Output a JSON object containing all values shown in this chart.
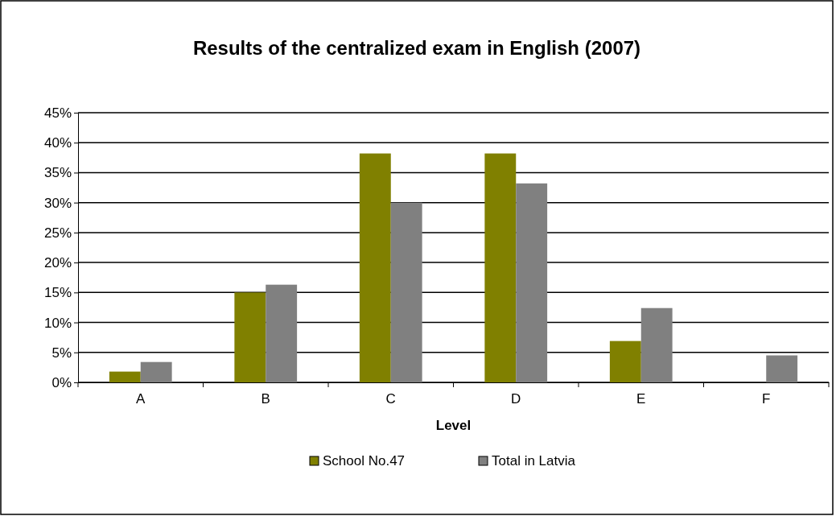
{
  "chart_data": {
    "type": "bar",
    "title": "Results of the centralized exam in English (2007)",
    "xlabel": "Level",
    "categories": [
      "A",
      "B",
      "C",
      "D",
      "E",
      "F"
    ],
    "series": [
      {
        "name": "School No.47",
        "color": "#808000",
        "values": [
          1.8,
          15.0,
          38.2,
          38.2,
          6.9,
          0
        ]
      },
      {
        "name": "Total in Latvia",
        "color": "#808080",
        "values": [
          3.4,
          16.3,
          30.0,
          33.2,
          12.4,
          4.5
        ]
      }
    ],
    "ylim": [
      0,
      45
    ],
    "yticks": [
      {
        "value": 0,
        "label": "0%"
      },
      {
        "value": 5,
        "label": "5%"
      },
      {
        "value": 10,
        "label": "10%"
      },
      {
        "value": 15,
        "label": "15%"
      },
      {
        "value": 20,
        "label": "20%"
      },
      {
        "value": 25,
        "label": "25%"
      },
      {
        "value": 30,
        "label": "30%"
      },
      {
        "value": 35,
        "label": "35%"
      },
      {
        "value": 40,
        "label": "40%"
      },
      {
        "value": 45,
        "label": "45%"
      }
    ],
    "grid": "y",
    "legend": "bottom"
  }
}
